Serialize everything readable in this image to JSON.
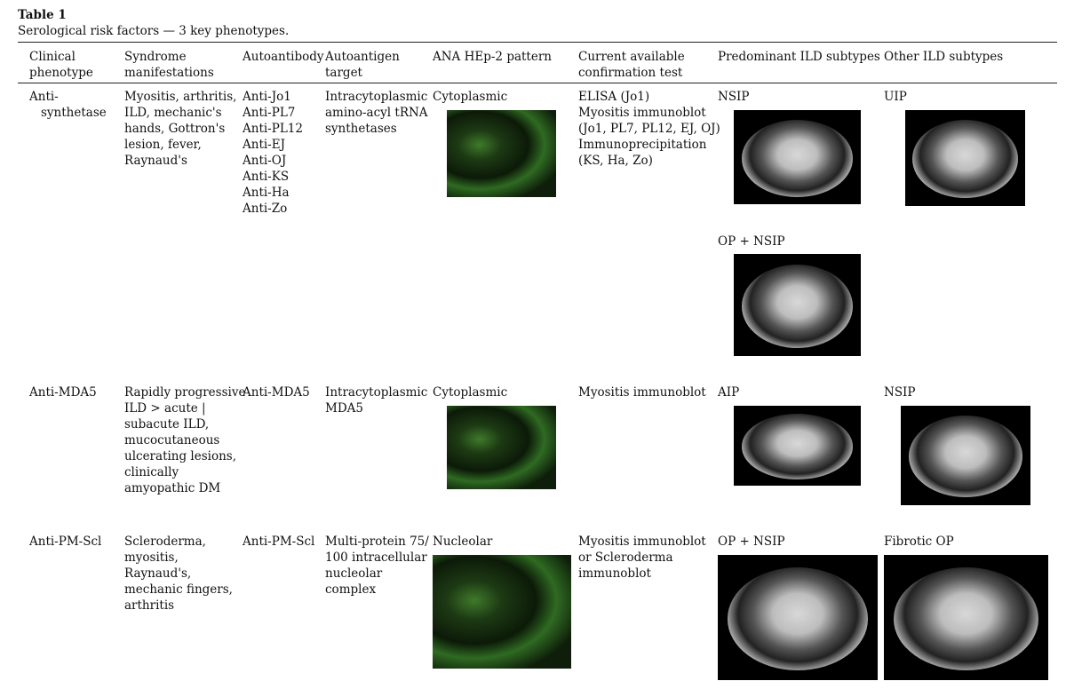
{
  "header": {
    "title": "Table 1",
    "caption": "Serological risk factors — 3 key phenotypes."
  },
  "table": {
    "columns": [
      [
        "Clinical",
        "phenotype"
      ],
      [
        "Syndrome",
        "manifestations"
      ],
      [
        "Autoantibody"
      ],
      [
        "Autoantigen",
        "target"
      ],
      [
        "ANA HEp-2 pattern"
      ],
      [
        "Current available",
        "confirmation test"
      ],
      [
        "Predominant ILD subtypes"
      ],
      [
        "Other ILD subtypes"
      ]
    ],
    "rows": [
      {
        "phenotype": [
          "Anti-",
          "synthetase"
        ],
        "syndrome": [
          "Myositis, arthritis,",
          "ILD, mechanic's",
          "hands, Gottron's",
          "lesion, fever,",
          "Raynaud's"
        ],
        "autoantibody": [
          "Anti-Jo1",
          "Anti-PL7",
          "Anti-PL12",
          "Anti-EJ",
          "Anti-OJ",
          "Anti-KS",
          "Anti-Ha",
          "Anti-Zo"
        ],
        "target": [
          "Intracytoplasmic",
          "amino-acyl tRNA",
          "synthetases"
        ],
        "pattern": "Cytoplasmic",
        "test": [
          "ELISA (Jo1)",
          "Myositis immunoblot",
          "(Jo1, PL7, PL12, EJ, OJ)",
          "Immunoprecipitation",
          "(KS, Ha, Zo)"
        ],
        "predominant": [
          "NSIP",
          "OP + NSIP"
        ],
        "other": [
          "UIP"
        ]
      },
      {
        "phenotype": [
          "Anti-MDA5"
        ],
        "syndrome": [
          "Rapidly progressive",
          "ILD > acute |",
          "subacute ILD,",
          "mucocutaneous",
          "ulcerating lesions,",
          "clinically",
          "amyopathic DM"
        ],
        "autoantibody": [
          "Anti-MDA5"
        ],
        "target": [
          "Intracytoplasmic",
          "MDA5"
        ],
        "pattern": "Cytoplasmic",
        "test": [
          "Myositis immunoblot"
        ],
        "predominant": [
          "AIP"
        ],
        "other": [
          "NSIP"
        ]
      },
      {
        "phenotype": [
          "Anti-PM-Scl"
        ],
        "syndrome": [
          "Scleroderma,",
          "myositis,",
          "Raynaud's,",
          "mechanic fingers,",
          "arthritis"
        ],
        "autoantibody": [
          "Anti-PM-Scl"
        ],
        "target": [
          "Multi-protein 75/",
          "100 intracellular",
          "nucleolar",
          "complex"
        ],
        "pattern": "Nucleolar",
        "test": [
          "Myositis immunoblot",
          "or Scleroderma",
          "immunoblot"
        ],
        "predominant": [
          "OP + NSIP"
        ],
        "other": [
          "Fibrotic OP"
        ]
      }
    ]
  }
}
